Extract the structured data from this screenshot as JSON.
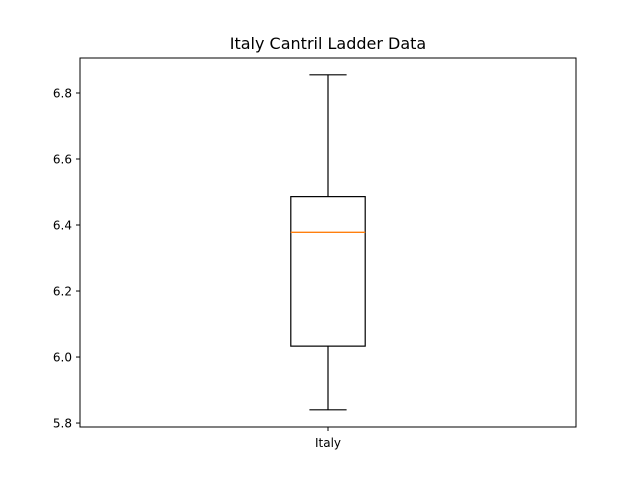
{
  "chart_data": {
    "type": "box",
    "title": "Italy Cantril Ladder Data",
    "xlabel": "",
    "ylabel": "",
    "categories": [
      "Italy"
    ],
    "boxes": [
      {
        "category": "Italy",
        "whisker_low": 5.84,
        "q1": 6.033,
        "median": 6.378,
        "q3": 6.486,
        "whisker_high": 6.855
      }
    ],
    "ylim": [
      5.788,
      6.906
    ],
    "yticks": [
      5.8,
      6.0,
      6.2,
      6.4,
      6.6,
      6.8
    ],
    "ytick_labels": [
      "5.8",
      "6.0",
      "6.2",
      "6.4",
      "6.6",
      "6.8"
    ],
    "grid": false,
    "colors": {
      "box": "#000000",
      "median": "#ff7f0e",
      "whisker": "#000000"
    }
  }
}
